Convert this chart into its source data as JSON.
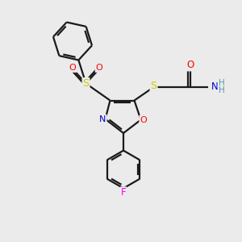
{
  "bg_color": "#ebebeb",
  "bond_color": "#1a1a1a",
  "atom_colors": {
    "O": "#ff0000",
    "N": "#0000cc",
    "S": "#cccc00",
    "F": "#ff00ff",
    "H": "#5599aa",
    "C": "#1a1a1a"
  },
  "line_width": 1.6,
  "double_lw": 1.6,
  "fig_size": [
    3.0,
    3.0
  ],
  "dpi": 100
}
